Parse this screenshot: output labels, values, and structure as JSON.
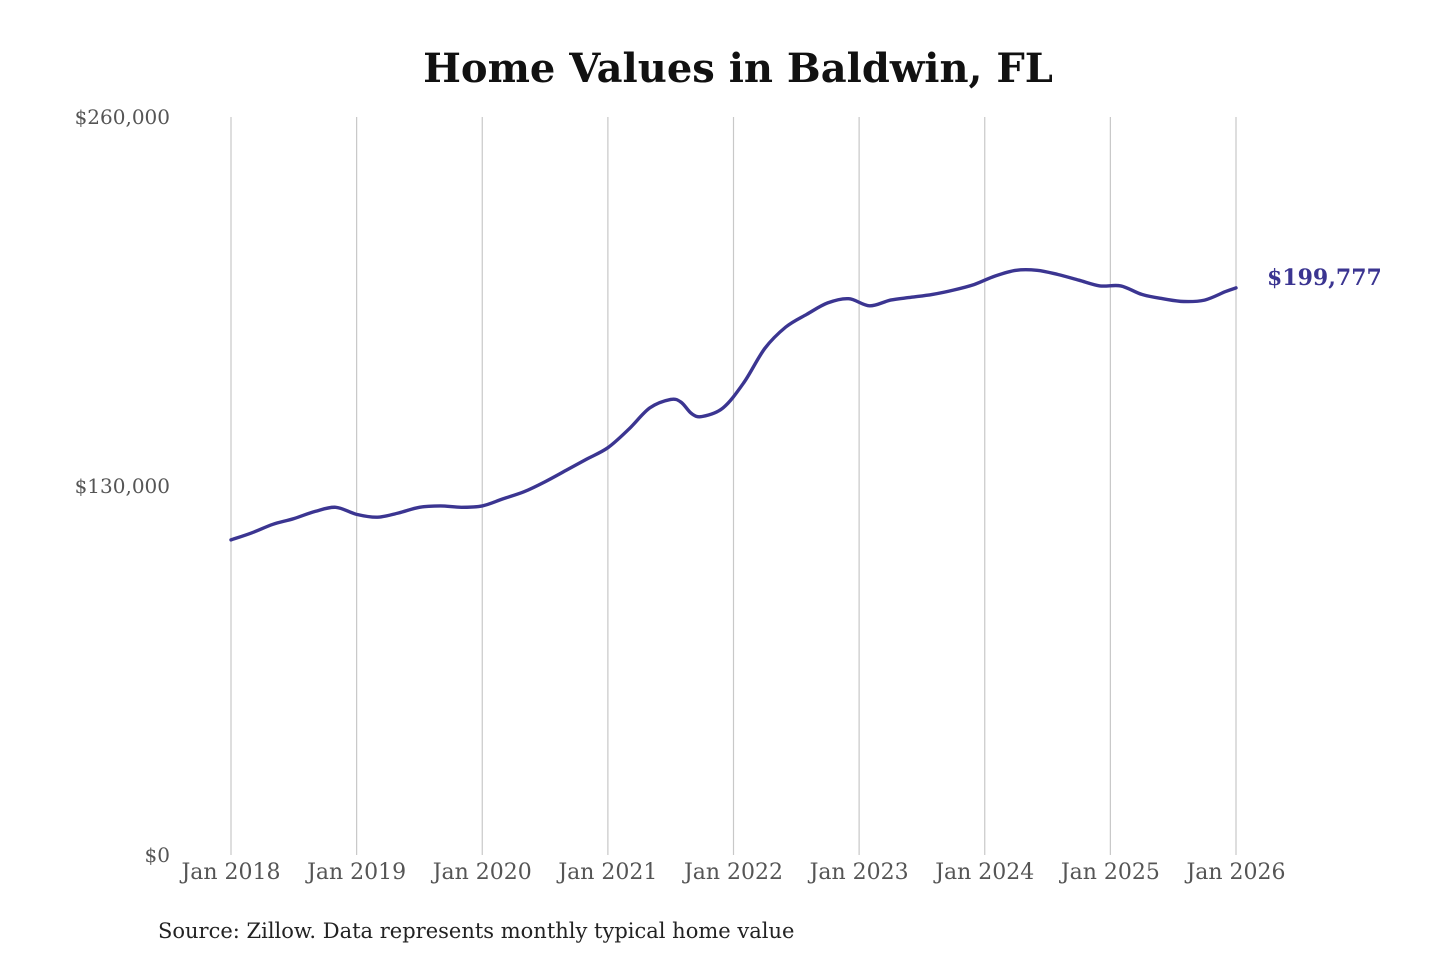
{
  "colors": {
    "series": "#3b3591",
    "grid": "#c8c8c8",
    "title": "#111111",
    "tick": "#555555"
  },
  "chart_data": {
    "type": "line",
    "title": "Home Values in Baldwin, FL",
    "xlabel": "",
    "ylabel": "",
    "ylim": [
      0,
      260000
    ],
    "xlim": [
      "2018-01",
      "2026-01"
    ],
    "grid": {
      "x": true,
      "y": false
    },
    "legend": "none",
    "y_ticks": [
      {
        "value": 0,
        "label": "$0"
      },
      {
        "value": 130000,
        "label": "$130,000"
      },
      {
        "value": 260000,
        "label": "$260,000"
      }
    ],
    "x_ticks": [
      {
        "value": "2018-01",
        "label": "Jan 2018"
      },
      {
        "value": "2019-01",
        "label": "Jan 2019"
      },
      {
        "value": "2020-01",
        "label": "Jan 2020"
      },
      {
        "value": "2021-01",
        "label": "Jan 2021"
      },
      {
        "value": "2022-01",
        "label": "Jan 2022"
      },
      {
        "value": "2023-01",
        "label": "Jan 2023"
      },
      {
        "value": "2024-01",
        "label": "Jan 2024"
      },
      {
        "value": "2025-01",
        "label": "Jan 2025"
      },
      {
        "value": "2026-01",
        "label": "Jan 2026"
      }
    ],
    "series": [
      {
        "x": [
          "2018-01",
          "2018-03",
          "2018-05",
          "2018-07",
          "2018-09",
          "2018-11",
          "2019-01",
          "2019-03",
          "2019-05",
          "2019-07",
          "2019-09",
          "2019-11",
          "2020-01",
          "2020-03",
          "2020-05",
          "2020-07",
          "2020-09",
          "2020-11",
          "2021-01",
          "2021-03",
          "2021-05",
          "2021-07",
          "2021-08",
          "2021-09",
          "2021-10",
          "2021-12",
          "2022-02",
          "2022-04",
          "2022-06",
          "2022-08",
          "2022-10",
          "2022-12",
          "2023-02",
          "2023-04",
          "2023-06",
          "2023-08",
          "2023-10",
          "2023-12",
          "2024-02",
          "2024-04",
          "2024-06",
          "2024-08",
          "2024-10",
          "2024-12",
          "2025-02",
          "2025-04",
          "2025-06",
          "2025-08",
          "2025-10",
          "2025-12",
          "2026-01"
        ],
        "values": [
          111000,
          113500,
          116500,
          118500,
          121000,
          122500,
          120000,
          119000,
          120500,
          122500,
          123000,
          122500,
          123000,
          125500,
          128000,
          131500,
          135500,
          139500,
          143500,
          150000,
          157500,
          160500,
          159500,
          155500,
          154500,
          157500,
          166500,
          178500,
          186000,
          190500,
          194500,
          196000,
          193500,
          195500,
          196500,
          197500,
          199000,
          201000,
          204000,
          206000,
          206000,
          204500,
          202500,
          200500,
          200500,
          197500,
          196000,
          195000,
          195500,
          198500,
          199777
        ],
        "end_label": "$199,777"
      }
    ],
    "note": "Source: Zillow. Data represents monthly typical home value"
  }
}
